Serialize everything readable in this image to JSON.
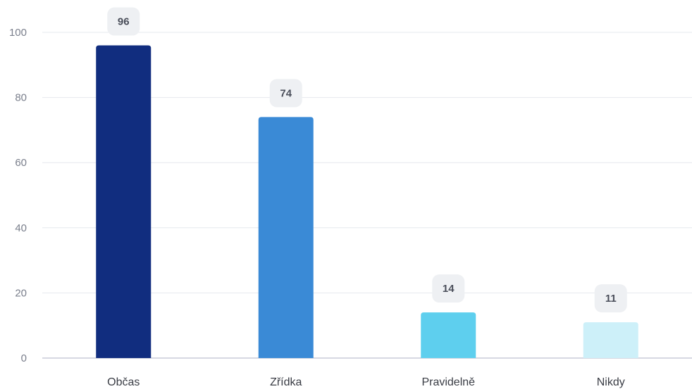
{
  "chart_data": {
    "type": "bar",
    "categories": [
      "Občas",
      "Zřídka",
      "Pravidelně",
      "Nikdy"
    ],
    "values": [
      96,
      74,
      14,
      11
    ],
    "colors": [
      "#112d7f",
      "#3a8ad6",
      "#5ecfee",
      "#cdf0f9"
    ],
    "title": "",
    "xlabel": "",
    "ylabel": "",
    "ylim": [
      0,
      100
    ],
    "yticks": [
      0,
      20,
      40,
      60,
      80,
      100
    ],
    "grid": true,
    "data_labels": true,
    "legend": "none"
  }
}
